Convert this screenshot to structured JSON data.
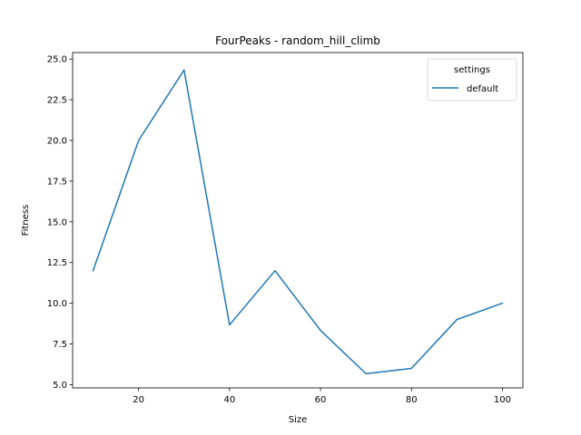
{
  "chart_data": {
    "type": "line",
    "title": "FourPeaks - random_hill_climb",
    "xlabel": "Size",
    "ylabel": "Fitness",
    "x": [
      10,
      20,
      30,
      40,
      50,
      60,
      70,
      80,
      90,
      100
    ],
    "series": [
      {
        "name": "default",
        "values": [
          12.0,
          20.0,
          24.33,
          8.67,
          12.0,
          8.33,
          5.67,
          6.0,
          9.0,
          10.0
        ],
        "color": "#1f77b4"
      }
    ],
    "xlim": [
      5.5,
      104.5
    ],
    "ylim": [
      4.8,
      25.4
    ],
    "xticks": [
      20,
      40,
      60,
      80,
      100
    ],
    "xtick_labels": [
      "20",
      "40",
      "60",
      "80",
      "100"
    ],
    "yticks": [
      5.0,
      7.5,
      10.0,
      12.5,
      15.0,
      17.5,
      20.0,
      22.5,
      25.0
    ],
    "ytick_labels": [
      "5.0",
      "7.5",
      "10.0",
      "12.5",
      "15.0",
      "17.5",
      "20.0",
      "22.5",
      "25.0"
    ],
    "grid": false,
    "legend": {
      "title": "settings",
      "placement": "top-right"
    }
  }
}
